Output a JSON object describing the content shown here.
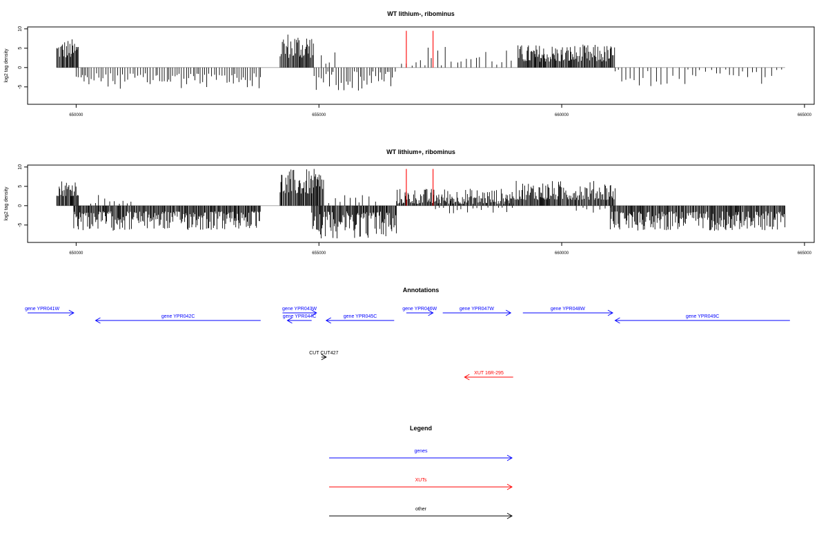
{
  "chart_data": [
    {
      "type": "bar",
      "title": "WT lithium-, ribominus",
      "ylabel": "log2 tag density",
      "xlim": [
        649000,
        665200
      ],
      "ylim": [
        -9.5,
        10.5
      ],
      "x_ticks": [
        650000,
        655000,
        660000,
        665000
      ],
      "x_tick_labels": [
        "650000",
        "655000",
        "660000",
        "665000"
      ],
      "y_ticks": [
        -5,
        0,
        5,
        10
      ],
      "y_tick_labels": [
        "-5",
        "0",
        "5",
        "10"
      ],
      "baseline": {
        "from": 649600,
        "to": 664600,
        "value": 0
      },
      "highlight_bars": [
        {
          "x": 656800,
          "value": 9.5
        },
        {
          "x": 657350,
          "value": 9.5
        }
      ],
      "segments": [
        {
          "from": 649600,
          "to": 650050,
          "min": 2.5,
          "max": 7.5,
          "sign": "pos",
          "density": "dense"
        },
        {
          "from": 650000,
          "to": 653800,
          "min": 1.5,
          "max": 5.5,
          "sign": "neg",
          "density": "medium"
        },
        {
          "from": 654200,
          "to": 654900,
          "min": 2.5,
          "max": 9.5,
          "sign": "pos",
          "density": "dense"
        },
        {
          "from": 654900,
          "to": 656600,
          "min": 1,
          "max": 6,
          "sign": "neg",
          "density": "medium"
        },
        {
          "from": 655050,
          "to": 655350,
          "min": 1,
          "max": 5,
          "sign": "pos",
          "density": "sparse"
        },
        {
          "from": 656700,
          "to": 659000,
          "min": 0.5,
          "max": 6,
          "sign": "pos",
          "density": "sparse"
        },
        {
          "from": 659100,
          "to": 661100,
          "min": 1.5,
          "max": 6,
          "sign": "pos",
          "density": "dense"
        },
        {
          "from": 661100,
          "to": 664600,
          "min": 0.5,
          "max": 5,
          "sign": "neg",
          "density": "sparse"
        }
      ]
    },
    {
      "type": "bar",
      "title": "WT lithium+, ribominus",
      "ylabel": "log2 tag density",
      "xlim": [
        649000,
        665200
      ],
      "ylim": [
        -9.5,
        10.5
      ],
      "x_ticks": [
        650000,
        655000,
        660000,
        665000
      ],
      "x_tick_labels": [
        "650000",
        "655000",
        "660000",
        "665000"
      ],
      "y_ticks": [
        -5,
        0,
        5,
        10
      ],
      "y_tick_labels": [
        "-5",
        "0",
        "5",
        "10"
      ],
      "baseline": {
        "from": 649600,
        "to": 664600,
        "value": 0
      },
      "highlight_bars": [
        {
          "x": 656800,
          "value": 9.5
        },
        {
          "x": 657350,
          "value": 9.5
        }
      ],
      "segments": [
        {
          "from": 649600,
          "to": 650050,
          "min": 2.5,
          "max": 7,
          "sign": "pos",
          "density": "dense"
        },
        {
          "from": 649950,
          "to": 653800,
          "min": 1.5,
          "max": 6.5,
          "sign": "neg",
          "density": "dense"
        },
        {
          "from": 650300,
          "to": 651200,
          "min": 0.5,
          "max": 3,
          "sign": "pos",
          "density": "sparse"
        },
        {
          "from": 654200,
          "to": 655100,
          "min": 3,
          "max": 9.5,
          "sign": "pos",
          "density": "dense"
        },
        {
          "from": 654850,
          "to": 656600,
          "min": 1.5,
          "max": 8.5,
          "sign": "neg",
          "density": "dense"
        },
        {
          "from": 655200,
          "to": 656200,
          "min": 0.5,
          "max": 3.5,
          "sign": "pos",
          "density": "sparse"
        },
        {
          "from": 656600,
          "to": 659000,
          "min": 0.5,
          "max": 4.5,
          "sign": "pos",
          "density": "dense"
        },
        {
          "from": 657400,
          "to": 659000,
          "min": 0.5,
          "max": 2,
          "sign": "neg",
          "density": "sparse"
        },
        {
          "from": 659000,
          "to": 661100,
          "min": 1.5,
          "max": 6.5,
          "sign": "pos",
          "density": "dense"
        },
        {
          "from": 660300,
          "to": 661100,
          "min": 0.5,
          "max": 2,
          "sign": "neg",
          "density": "sparse"
        },
        {
          "from": 661000,
          "to": 664600,
          "min": 1.5,
          "max": 6.5,
          "sign": "neg",
          "density": "dense"
        }
      ]
    }
  ],
  "annotations": {
    "title": "Annotations",
    "items": [
      {
        "label": "gene YPR041W",
        "from": 649000,
        "to": 649950,
        "strand": "+",
        "kind": "genes",
        "row": 0,
        "label_at": 649300
      },
      {
        "label": "gene YPR042C",
        "from": 650400,
        "to": 653800,
        "strand": "-",
        "kind": "genes",
        "row": 1
      },
      {
        "label": "gene YPR043W",
        "from": 654250,
        "to": 654950,
        "strand": "+",
        "kind": "genes",
        "row": 0
      },
      {
        "label": "gene YPR044C",
        "from": 654350,
        "to": 654850,
        "strand": "-",
        "kind": "genes",
        "row": 1
      },
      {
        "label": "gene YPR045C",
        "from": 655150,
        "to": 656550,
        "strand": "-",
        "kind": "genes",
        "row": 1
      },
      {
        "label": "gene YPR046W",
        "from": 656800,
        "to": 657350,
        "strand": "+",
        "kind": "genes",
        "row": 0
      },
      {
        "label": "gene YPR047W",
        "from": 657550,
        "to": 658950,
        "strand": "+",
        "kind": "genes",
        "row": 0
      },
      {
        "label": "gene YPR048W",
        "from": 659200,
        "to": 661050,
        "strand": "+",
        "kind": "genes",
        "row": 0
      },
      {
        "label": "gene YPR049C",
        "from": 661100,
        "to": 664700,
        "strand": "-",
        "kind": "genes",
        "row": 1
      },
      {
        "label": "CUT CUT427",
        "from": 655050,
        "to": 655150,
        "strand": "+",
        "kind": "other",
        "row": 2
      },
      {
        "label": "XUT 16R-295",
        "from": 658000,
        "to": 659000,
        "strand": "-",
        "kind": "XUTs",
        "row": 3
      }
    ]
  },
  "legend": {
    "title": "Legend",
    "items": [
      {
        "label": "genes",
        "kind": "genes"
      },
      {
        "label": "XUTs",
        "kind": "XUTs"
      },
      {
        "label": "other",
        "kind": "other"
      }
    ]
  },
  "colors": {
    "genes": "#0000ff",
    "XUTs": "#ff0000",
    "other": "#000000",
    "bars": "#000000",
    "highlight": "#ff0000",
    "axis": "#000000",
    "baseline": "#999999"
  }
}
